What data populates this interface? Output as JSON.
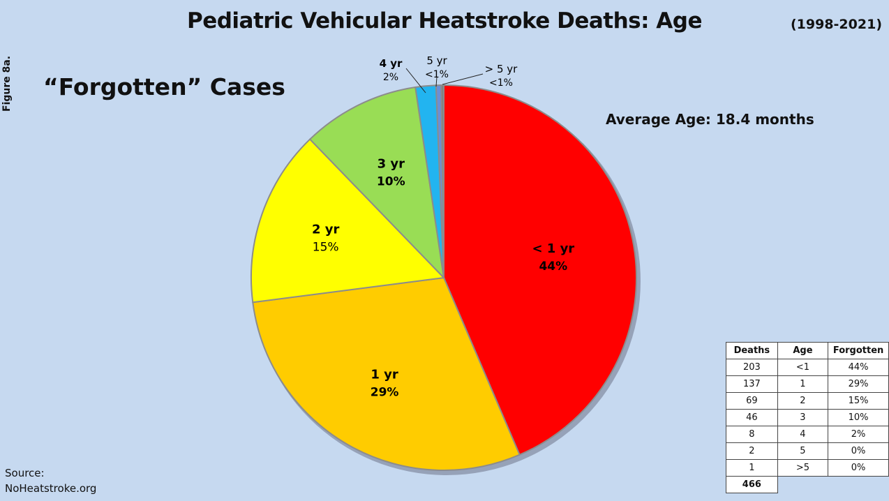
{
  "header": {
    "title": "Pediatric Vehicular Heatstroke Deaths: Age",
    "years": "(1998-2021)",
    "figure_label": "Figure 8a.",
    "subtitle": "“Forgotten” Cases",
    "average": "Average Age: 18.4 months"
  },
  "source": {
    "line1": "Source:",
    "line2": "NoHeatstroke.org"
  },
  "chart_data": {
    "type": "pie",
    "title": "Pediatric Vehicular Heatstroke Deaths: Age",
    "slices": [
      {
        "label": "< 1 yr",
        "pct_label": "44%",
        "value": 203,
        "color": "#ff0000"
      },
      {
        "label": "1 yr",
        "pct_label": "29%",
        "value": 137,
        "color": "#ffcc00"
      },
      {
        "label": "2 yr",
        "pct_label": "15%",
        "value": 69,
        "color": "#ffff00"
      },
      {
        "label": "3 yr",
        "pct_label": "10%",
        "value": 46,
        "color": "#99dd55"
      },
      {
        "label": "4 yr",
        "pct_label": "2%",
        "value": 8,
        "color": "#22b4f0"
      },
      {
        "label": "5 yr",
        "pct_label": "<1%",
        "value": 2,
        "color": "#6b8fd6"
      },
      {
        "label": "> 5 yr",
        "pct_label": "<1%",
        "value": 1,
        "color": "#7f7f7f"
      }
    ]
  },
  "table": {
    "headers": [
      "Deaths",
      "Age",
      "Forgotten"
    ],
    "rows": [
      [
        "203",
        "<1",
        "44%"
      ],
      [
        "137",
        "1",
        "29%"
      ],
      [
        "69",
        "2",
        "15%"
      ],
      [
        "46",
        "3",
        "10%"
      ],
      [
        "8",
        "4",
        "2%"
      ],
      [
        "2",
        "5",
        "0%"
      ],
      [
        "1",
        ">5",
        "0%"
      ]
    ],
    "total": "466"
  }
}
